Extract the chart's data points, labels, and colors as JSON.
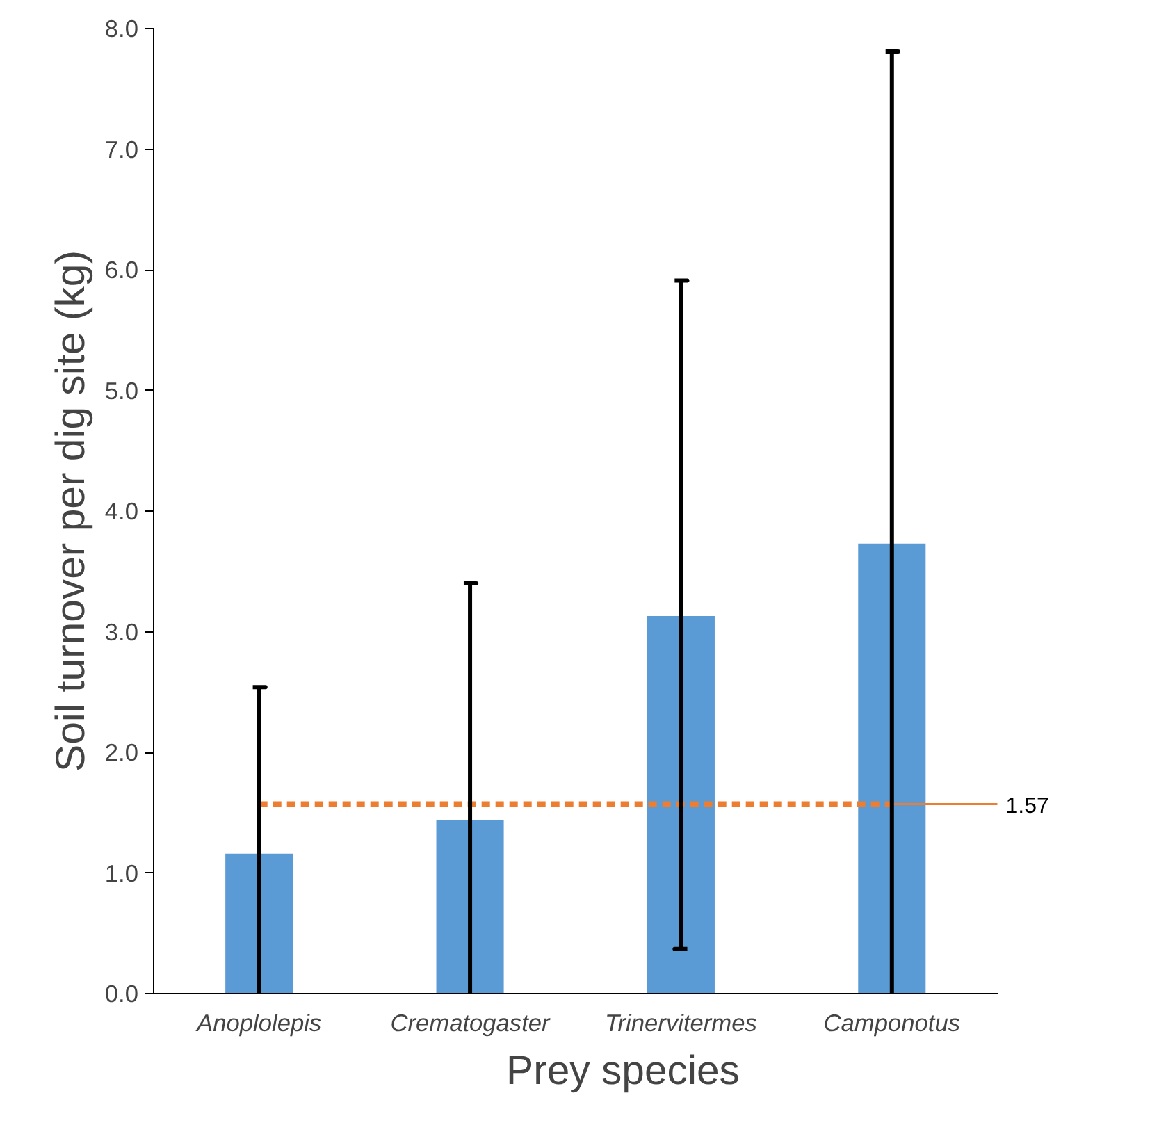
{
  "chart_data": {
    "type": "bar",
    "xlabel": "Prey species",
    "ylabel": "Soil turnover per dig site (kg)",
    "categories": [
      "Anoplolepis",
      "Crematogaster",
      "Trinervitermes",
      "Camponotus"
    ],
    "values": [
      1.16,
      1.44,
      3.13,
      3.73
    ],
    "color": "#5b9bd5",
    "errors": [
      [
        0,
        2.54
      ],
      [
        0,
        3.4
      ],
      [
        0.37,
        5.91
      ],
      [
        0,
        7.81
      ]
    ],
    "ylim": [
      0,
      8
    ],
    "yticks": [
      {
        "value": 0,
        "label": "0.0"
      },
      {
        "value": 1,
        "label": "1.0"
      },
      {
        "value": 2,
        "label": "2.0"
      },
      {
        "value": 3,
        "label": "3.0"
      },
      {
        "value": 4,
        "label": "4.0"
      },
      {
        "value": 5,
        "label": "5.0"
      },
      {
        "value": 6,
        "label": "6.0"
      },
      {
        "value": 7,
        "label": "7.0"
      },
      {
        "value": 8,
        "label": "8.0"
      }
    ],
    "ref_lines": [
      {
        "axis": "y",
        "value": 1.57,
        "label": "1.57",
        "color": "#ed7d31",
        "line_style": "dashed"
      }
    ],
    "grid": false
  }
}
